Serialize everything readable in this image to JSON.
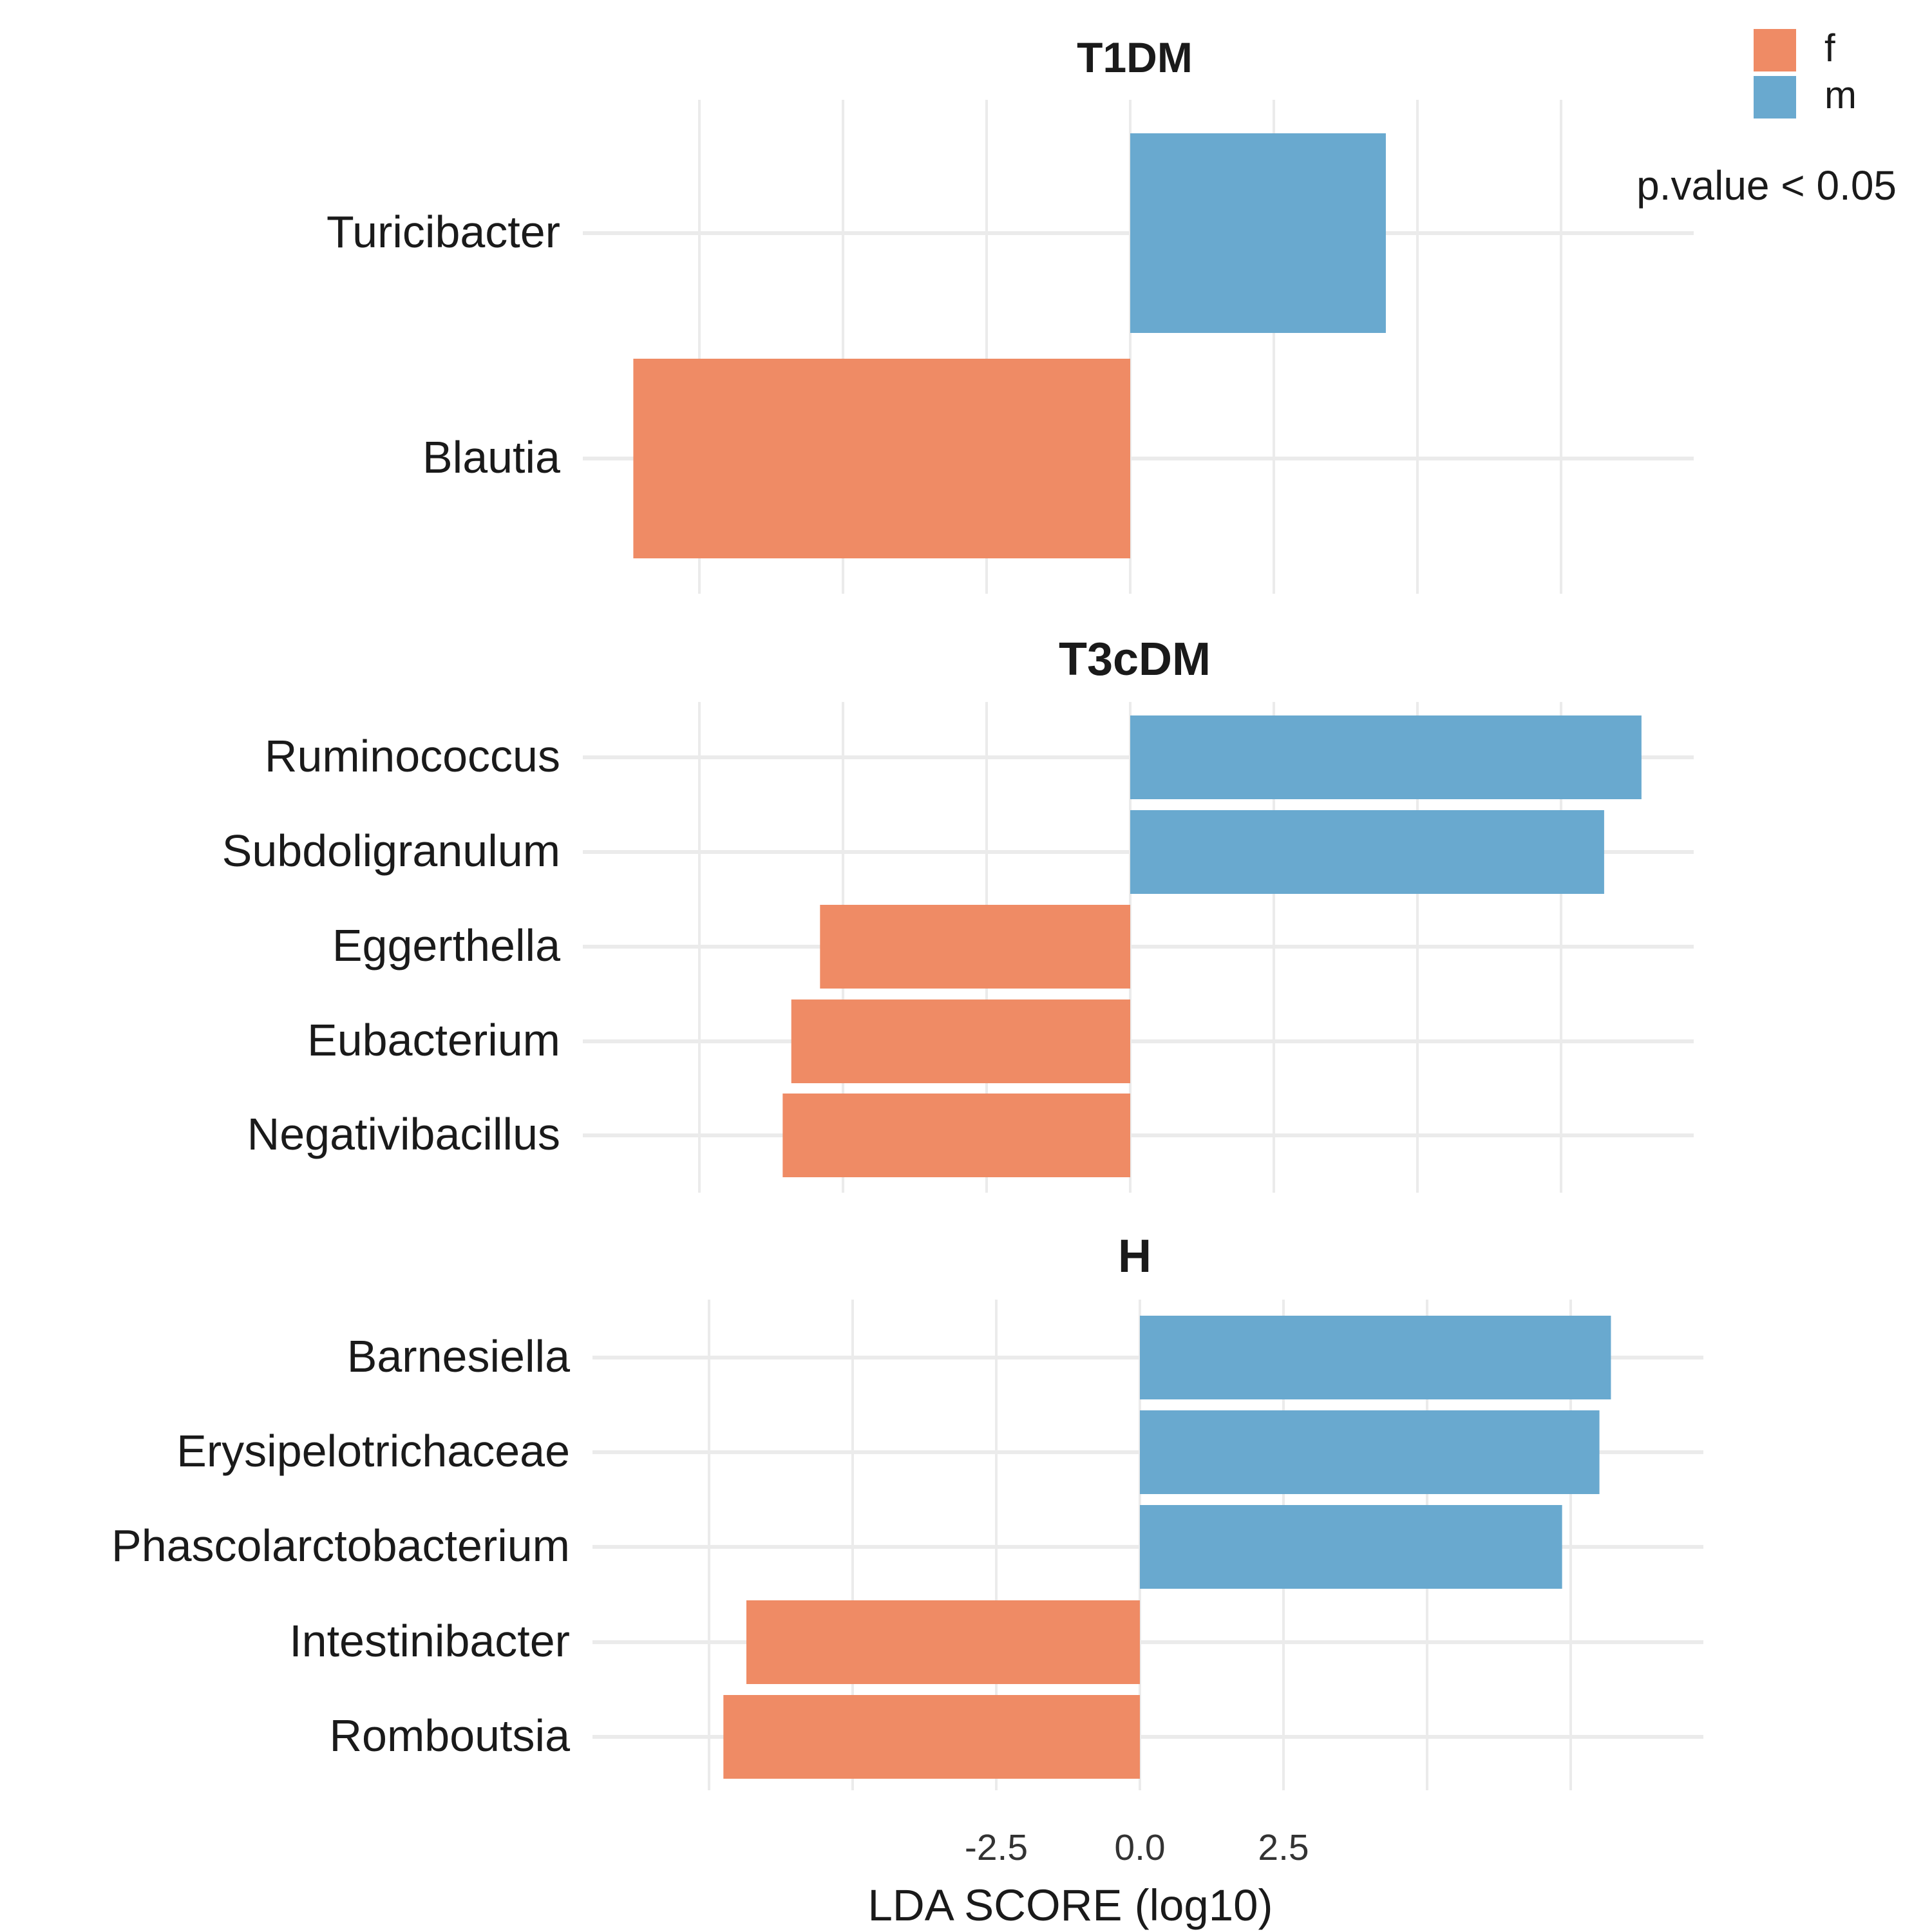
{
  "chart_data": {
    "type": "bar",
    "orientation": "horizontal",
    "xlabel": "LDA SCORE (log10)",
    "x_ticks": [
      "-2.5",
      "0.0",
      "2.5"
    ],
    "x_tick_values": [
      -2.5,
      0.0,
      2.5
    ],
    "xlim": [
      -9.75,
      9.8
    ],
    "grid": true,
    "annotation": "p.value < 0.05",
    "legend": {
      "position": "top-right",
      "items": [
        {
          "label": "f",
          "color": "#EF8B65"
        },
        {
          "label": "m",
          "color": "#69A9CF"
        }
      ]
    },
    "facets": [
      {
        "title": "T1DM",
        "categories": [
          "Turicibacter",
          "Blautia"
        ],
        "values": [
          4.45,
          -8.65
        ],
        "groups": [
          "m",
          "f"
        ]
      },
      {
        "title": "T3cDM",
        "categories": [
          "Ruminococcus",
          "Subdoligranulum",
          "Eggerthella",
          "Eubacterium",
          "Negativibacillus"
        ],
        "values": [
          8.9,
          8.25,
          -5.4,
          -5.9,
          -6.05
        ],
        "groups": [
          "m",
          "m",
          "f",
          "f",
          "f"
        ]
      },
      {
        "title": "H",
        "categories": [
          "Barnesiella",
          "Erysipelotrichaceae",
          "Phascolarctobacterium",
          "Intestinibacter",
          "Romboutsia"
        ],
        "values": [
          8.2,
          8.0,
          7.35,
          -6.85,
          -7.25
        ],
        "groups": [
          "m",
          "m",
          "m",
          "f",
          "f"
        ]
      }
    ]
  }
}
